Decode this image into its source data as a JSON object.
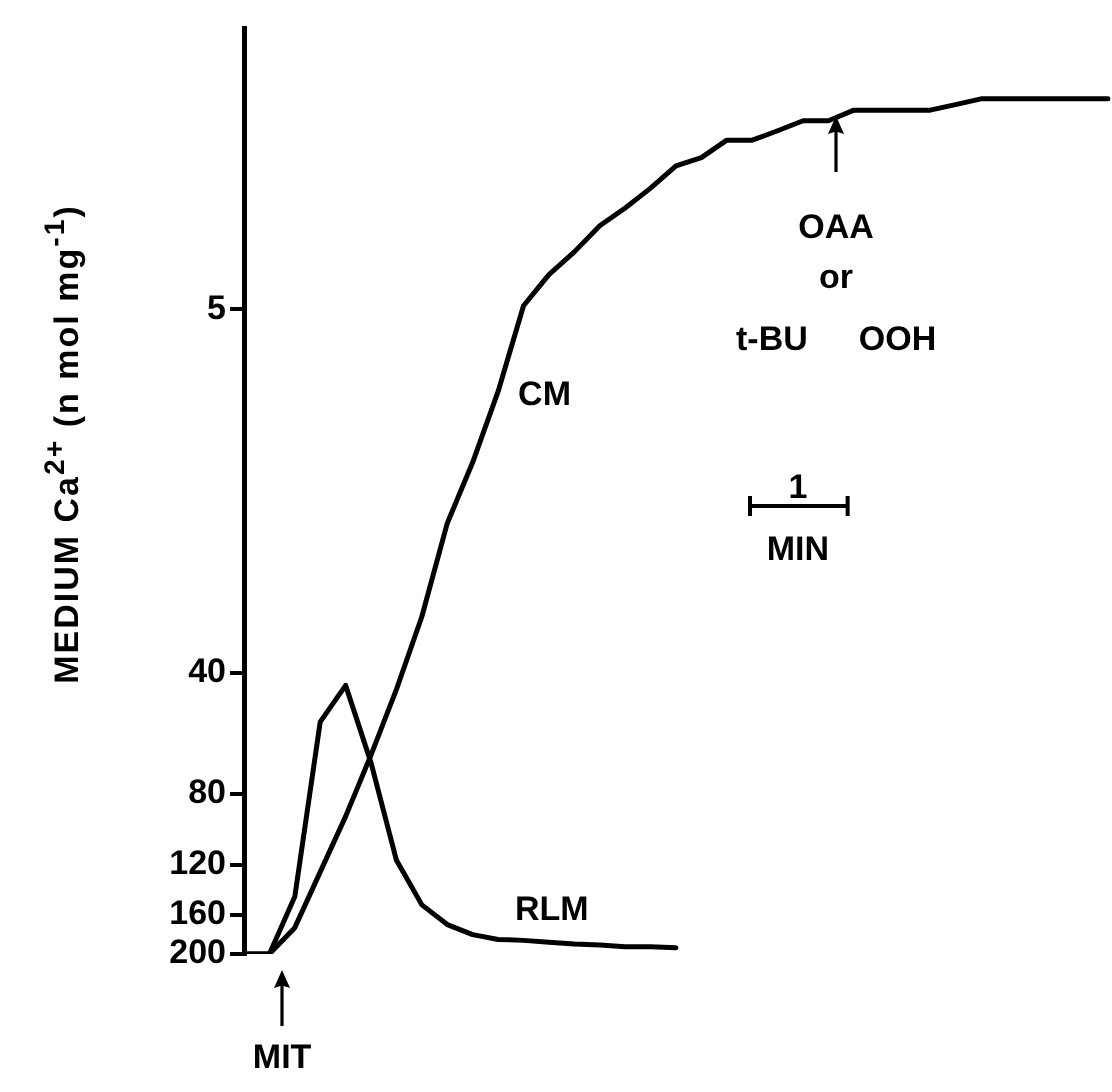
{
  "chart_data": {
    "type": "line",
    "ylabel": "MEDIUM Ca$^{2+}$ (n mol mg$^{-1}$)",
    "categories": [
      null,
      null,
      null,
      null,
      null,
      null,
      null,
      null,
      null,
      null,
      null,
      null,
      null,
      null,
      null,
      null,
      null,
      null,
      null,
      null,
      null,
      null,
      null,
      null,
      null,
      null,
      null,
      null,
      null,
      null,
      null,
      null,
      null,
      null,
      null
    ],
    "series": [
      {
        "name": "CM",
        "color": "#000000",
        "values": [
          200,
          200,
          172,
          125,
          91,
          64,
          44,
          29,
          17,
          12,
          8,
          4.9,
          4.1,
          3.6,
          3.1,
          2.8,
          2.5,
          2.2,
          2.1,
          1.9,
          1.9,
          1.8,
          1.7,
          1.7,
          1.6,
          1.6,
          1.6,
          1.6,
          1.55,
          1.5,
          1.5,
          1.5,
          1.5,
          1.5,
          1.5
        ]
      },
      {
        "name": "RLM",
        "color": "#000000",
        "values": [
          200,
          200,
          144,
          53,
          43,
          67,
          117,
          151,
          169,
          179,
          184,
          185,
          187,
          189,
          190,
          192,
          192,
          193,
          null,
          null,
          null,
          null,
          null,
          null,
          null,
          null,
          null,
          null,
          null,
          null,
          null,
          null,
          null,
          null,
          null
        ]
      }
    ],
    "ylim": [
      200,
      1
    ],
    "yticks": [
      200,
      160,
      120,
      80,
      40,
      5
    ],
    "log": true,
    "grid": false,
    "legend": false,
    "marker": "none",
    "line_style": "solid",
    "tick_labels": "y",
    "annotations": [
      "MIT",
      "OAA or t-BU OOH",
      "1 MIN"
    ]
  }
}
